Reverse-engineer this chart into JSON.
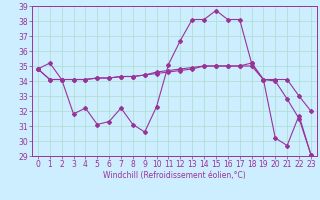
{
  "xlabel": "Windchill (Refroidissement éolien,°C)",
  "bg_color": "#cceeff",
  "line_color": "#993399",
  "grid_color": "#aaddcc",
  "xlim": [
    -0.5,
    23.5
  ],
  "ylim": [
    29,
    39
  ],
  "yticks": [
    29,
    30,
    31,
    32,
    33,
    34,
    35,
    36,
    37,
    38,
    39
  ],
  "xticks": [
    0,
    1,
    2,
    3,
    4,
    5,
    6,
    7,
    8,
    9,
    10,
    11,
    12,
    13,
    14,
    15,
    16,
    17,
    18,
    19,
    20,
    21,
    22,
    23
  ],
  "line1_x": [
    0,
    1,
    2,
    3,
    4,
    5,
    6,
    7,
    8,
    9,
    10,
    11,
    12,
    13,
    14,
    15,
    16,
    17,
    18,
    19,
    20,
    21,
    22,
    23
  ],
  "line1_y": [
    34.8,
    35.2,
    34.1,
    31.8,
    32.2,
    31.1,
    31.3,
    32.2,
    31.1,
    30.6,
    32.3,
    35.1,
    36.7,
    38.1,
    38.1,
    38.7,
    38.1,
    38.1,
    35.2,
    34.1,
    30.2,
    29.7,
    31.7,
    29.1
  ],
  "line2_x": [
    0,
    1,
    2,
    3,
    4,
    5,
    6,
    7,
    8,
    9,
    10,
    11,
    12,
    13,
    14,
    15,
    16,
    17,
    18,
    19,
    20,
    21,
    22,
    23
  ],
  "line2_y": [
    34.8,
    34.1,
    34.1,
    34.1,
    34.1,
    34.2,
    34.2,
    34.3,
    34.3,
    34.4,
    34.5,
    34.6,
    34.7,
    34.8,
    35.0,
    35.0,
    35.0,
    35.0,
    35.0,
    34.1,
    34.1,
    34.1,
    33.0,
    32.0
  ],
  "line3_x": [
    0,
    1,
    2,
    3,
    4,
    5,
    6,
    7,
    8,
    9,
    10,
    11,
    12,
    13,
    14,
    15,
    16,
    17,
    18,
    19,
    20,
    21,
    22,
    23
  ],
  "line3_y": [
    34.8,
    34.1,
    34.1,
    34.1,
    34.1,
    34.2,
    34.2,
    34.3,
    34.3,
    34.4,
    34.6,
    34.7,
    34.8,
    34.9,
    35.0,
    35.0,
    35.0,
    35.0,
    35.2,
    34.1,
    34.0,
    32.8,
    31.5,
    29.1
  ],
  "tick_fontsize": 5.5,
  "xlabel_fontsize": 5.5
}
